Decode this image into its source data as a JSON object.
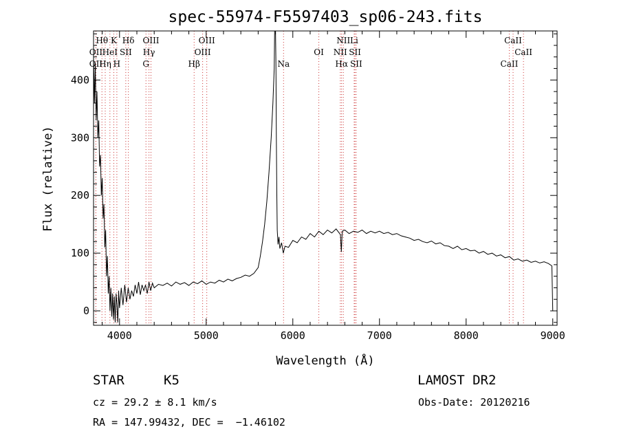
{
  "chart_data": {
    "type": "line",
    "title": "spec-55974-F5597403_sp06-243.fits",
    "xlabel": "Wavelength (Å)",
    "ylabel": "Flux (relative)",
    "xlim": [
      3700,
      9050
    ],
    "ylim": [
      -25,
      485
    ],
    "xticks": [
      4000,
      5000,
      6000,
      7000,
      8000,
      9000
    ],
    "yticks": [
      0,
      100,
      200,
      300,
      400
    ],
    "grid": false,
    "legend": "none",
    "colors": {
      "spectrum": "#000000",
      "line_marker": "#cc3333",
      "text": "#000000"
    },
    "series": [
      {
        "values": [
          [
            3700,
            440
          ],
          [
            3710,
            360
          ],
          [
            3720,
            430
          ],
          [
            3730,
            330
          ],
          [
            3740,
            380
          ],
          [
            3750,
            300
          ],
          [
            3760,
            330
          ],
          [
            3770,
            250
          ],
          [
            3780,
            270
          ],
          [
            3790,
            200
          ],
          [
            3800,
            230
          ],
          [
            3810,
            160
          ],
          [
            3820,
            185
          ],
          [
            3830,
            110
          ],
          [
            3840,
            140
          ],
          [
            3850,
            60
          ],
          [
            3860,
            95
          ],
          [
            3870,
            30
          ],
          [
            3880,
            60
          ],
          [
            3890,
            0
          ],
          [
            3900,
            40
          ],
          [
            3910,
            -10
          ],
          [
            3920,
            30
          ],
          [
            3930,
            -15
          ],
          [
            3940,
            25
          ],
          [
            3950,
            -20
          ],
          [
            3960,
            30
          ],
          [
            3970,
            10
          ],
          [
            3980,
            -20
          ],
          [
            3990,
            35
          ],
          [
            4000,
            5
          ],
          [
            4020,
            40
          ],
          [
            4040,
            10
          ],
          [
            4060,
            45
          ],
          [
            4080,
            15
          ],
          [
            4100,
            40
          ],
          [
            4120,
            20
          ],
          [
            4140,
            35
          ],
          [
            4160,
            25
          ],
          [
            4180,
            45
          ],
          [
            4200,
            30
          ],
          [
            4220,
            50
          ],
          [
            4240,
            28
          ],
          [
            4260,
            45
          ],
          [
            4280,
            35
          ],
          [
            4300,
            45
          ],
          [
            4320,
            30
          ],
          [
            4340,
            50
          ],
          [
            4360,
            35
          ],
          [
            4380,
            48
          ],
          [
            4400,
            40
          ],
          [
            4450,
            46
          ],
          [
            4500,
            44
          ],
          [
            4550,
            48
          ],
          [
            4600,
            43
          ],
          [
            4650,
            50
          ],
          [
            4700,
            46
          ],
          [
            4750,
            49
          ],
          [
            4800,
            44
          ],
          [
            4850,
            50
          ],
          [
            4900,
            47
          ],
          [
            4950,
            52
          ],
          [
            5000,
            46
          ],
          [
            5050,
            50
          ],
          [
            5100,
            48
          ],
          [
            5150,
            53
          ],
          [
            5200,
            50
          ],
          [
            5250,
            55
          ],
          [
            5300,
            52
          ],
          [
            5350,
            56
          ],
          [
            5400,
            58
          ],
          [
            5450,
            62
          ],
          [
            5500,
            60
          ],
          [
            5550,
            65
          ],
          [
            5600,
            75
          ],
          [
            5625,
            95
          ],
          [
            5650,
            120
          ],
          [
            5675,
            150
          ],
          [
            5700,
            190
          ],
          [
            5725,
            240
          ],
          [
            5750,
            300
          ],
          [
            5770,
            360
          ],
          [
            5785,
            420
          ],
          [
            5790,
            485
          ],
          [
            5800,
            485
          ],
          [
            5805,
            430
          ],
          [
            5810,
            300
          ],
          [
            5815,
            200
          ],
          [
            5820,
            140
          ],
          [
            5830,
            115
          ],
          [
            5840,
            128
          ],
          [
            5850,
            108
          ],
          [
            5870,
            118
          ],
          [
            5890,
            100
          ],
          [
            5910,
            112
          ],
          [
            5950,
            110
          ],
          [
            6000,
            122
          ],
          [
            6050,
            118
          ],
          [
            6100,
            128
          ],
          [
            6150,
            124
          ],
          [
            6200,
            134
          ],
          [
            6250,
            128
          ],
          [
            6300,
            138
          ],
          [
            6350,
            132
          ],
          [
            6400,
            140
          ],
          [
            6450,
            135
          ],
          [
            6500,
            142
          ],
          [
            6550,
            132
          ],
          [
            6560,
            102
          ],
          [
            6570,
            138
          ],
          [
            6600,
            140
          ],
          [
            6650,
            134
          ],
          [
            6700,
            138
          ],
          [
            6750,
            136
          ],
          [
            6800,
            140
          ],
          [
            6850,
            134
          ],
          [
            6900,
            138
          ],
          [
            6950,
            135
          ],
          [
            7000,
            138
          ],
          [
            7050,
            134
          ],
          [
            7100,
            136
          ],
          [
            7150,
            132
          ],
          [
            7200,
            134
          ],
          [
            7250,
            130
          ],
          [
            7300,
            128
          ],
          [
            7350,
            126
          ],
          [
            7400,
            122
          ],
          [
            7450,
            124
          ],
          [
            7500,
            120
          ],
          [
            7550,
            118
          ],
          [
            7600,
            121
          ],
          [
            7650,
            116
          ],
          [
            7700,
            118
          ],
          [
            7750,
            113
          ],
          [
            7800,
            112
          ],
          [
            7850,
            108
          ],
          [
            7900,
            112
          ],
          [
            7950,
            106
          ],
          [
            8000,
            108
          ],
          [
            8050,
            104
          ],
          [
            8100,
            105
          ],
          [
            8150,
            100
          ],
          [
            8200,
            103
          ],
          [
            8250,
            98
          ],
          [
            8300,
            100
          ],
          [
            8350,
            95
          ],
          [
            8400,
            97
          ],
          [
            8450,
            92
          ],
          [
            8500,
            94
          ],
          [
            8550,
            88
          ],
          [
            8600,
            90
          ],
          [
            8650,
            86
          ],
          [
            8700,
            88
          ],
          [
            8750,
            84
          ],
          [
            8800,
            86
          ],
          [
            8850,
            83
          ],
          [
            8900,
            85
          ],
          [
            8950,
            82
          ],
          [
            8990,
            78
          ],
          [
            9000,
            0
          ]
        ]
      }
    ],
    "line_markers": [
      {
        "label": "Hθ",
        "x": 3797,
        "row": 0
      },
      {
        "label": "K",
        "x": 3934,
        "row": 0
      },
      {
        "label": "Hδ",
        "x": 4102,
        "row": 0
      },
      {
        "label": "OIII",
        "x": 4363,
        "row": 0
      },
      {
        "label": "OIII",
        "x": 5007,
        "row": 0
      },
      {
        "label": "NII",
        "x": 6583,
        "row": 0
      },
      {
        "label": "Li",
        "x": 6708,
        "row": 0
      },
      {
        "label": "CaII",
        "x": 8542,
        "row": 0
      },
      {
        "label": "OII",
        "x": 3727,
        "row": 1
      },
      {
        "label": "HeI",
        "x": 3889,
        "row": 1
      },
      {
        "label": "SII",
        "x": 4072,
        "row": 1
      },
      {
        "label": "Hγ",
        "x": 4340,
        "row": 1
      },
      {
        "label": "OIII",
        "x": 4959,
        "row": 1
      },
      {
        "label": "OI",
        "x": 6300,
        "row": 1
      },
      {
        "label": "NII",
        "x": 6548,
        "row": 1
      },
      {
        "label": "SII",
        "x": 6717,
        "row": 1
      },
      {
        "label": "CaII",
        "x": 8662,
        "row": 1
      },
      {
        "label": "OII",
        "x": 3727,
        "row": 2
      },
      {
        "label": "Hη",
        "x": 3835,
        "row": 2
      },
      {
        "label": "H",
        "x": 3969,
        "row": 2
      },
      {
        "label": "G",
        "x": 4305,
        "row": 2
      },
      {
        "label": "Hβ",
        "x": 4861,
        "row": 2
      },
      {
        "label": "Na",
        "x": 5893,
        "row": 2
      },
      {
        "label": "Hα",
        "x": 6563,
        "row": 2
      },
      {
        "label": "SII",
        "x": 6731,
        "row": 2
      },
      {
        "label": "CaII",
        "x": 8498,
        "row": 2
      }
    ]
  },
  "info": {
    "object_class": "STAR",
    "subclass": "K5",
    "survey": "LAMOST DR2",
    "cz": "cz = 29.2 ± 8.1 km/s",
    "obs_date": "Obs-Date: 20120216",
    "coords": "RA = 147.99432, DEC =  −1.46102"
  }
}
